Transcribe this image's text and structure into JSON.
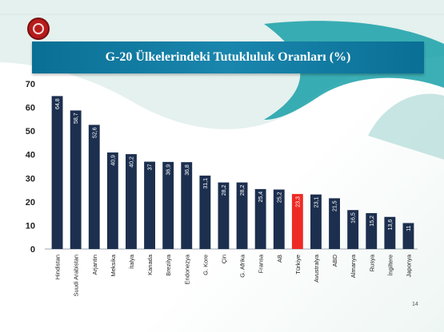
{
  "page": {
    "number": "14"
  },
  "colors": {
    "bar": "#1c2f4f",
    "highlight": "#ee2a24",
    "title_band": "#0a6f95",
    "wave": "#1aa0a8"
  },
  "chart_data": {
    "type": "bar",
    "title": "G-20 Ülkelerindeki Tutukluluk Oranları (%)",
    "xlabel": "",
    "ylabel": "",
    "ylim": [
      0,
      70
    ],
    "yticks": [
      "0",
      "10",
      "20",
      "30",
      "40",
      "50",
      "60",
      "70"
    ],
    "grid": false,
    "highlight_category": "Türkiye",
    "categories": [
      "Hindistan",
      "Suudi Arabistan",
      "Arjantin",
      "Meksika",
      "İtalya",
      "Kanada",
      "Brezilya",
      "Endonezya",
      "G. Kore",
      "Çin",
      "G. Afrika",
      "Fransa",
      "AB",
      "Türkiye",
      "Avustralya",
      "ABD",
      "Almanya",
      "Rusya",
      "İngiltere",
      "Japonya"
    ],
    "values": [
      64.8,
      58.7,
      52.6,
      40.9,
      40.2,
      37,
      36.9,
      36.8,
      31.1,
      28.2,
      28.2,
      25.4,
      25.2,
      23.3,
      23.1,
      21.5,
      16.5,
      15.2,
      13.6,
      11
    ],
    "value_labels": [
      "64,8",
      "58,7",
      "52,6",
      "40,9",
      "40,2",
      "37",
      "36,9",
      "36,8",
      "31,1",
      "28,2",
      "28,2",
      "25,4",
      "25,2",
      "23,3",
      "23,1",
      "21,5",
      "16,5",
      "15,2",
      "13,6",
      "11"
    ]
  }
}
